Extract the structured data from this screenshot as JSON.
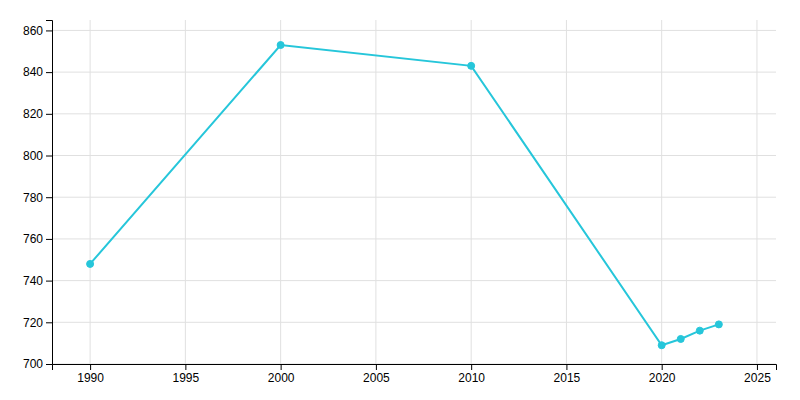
{
  "chart_data": {
    "type": "line",
    "x": [
      1990,
      2000,
      2010,
      2020,
      2021,
      2022,
      2023
    ],
    "values": [
      748,
      853,
      843,
      709,
      712,
      716,
      719
    ],
    "color": "#26C6DA",
    "marker": "circle",
    "xlim": [
      1988,
      2026
    ],
    "ylim": [
      700,
      865
    ],
    "xticks": [
      1990,
      1995,
      2000,
      2005,
      2010,
      2015,
      2020,
      2025
    ],
    "yticks": [
      700,
      720,
      740,
      760,
      780,
      800,
      820,
      840,
      860
    ],
    "grid": true
  }
}
